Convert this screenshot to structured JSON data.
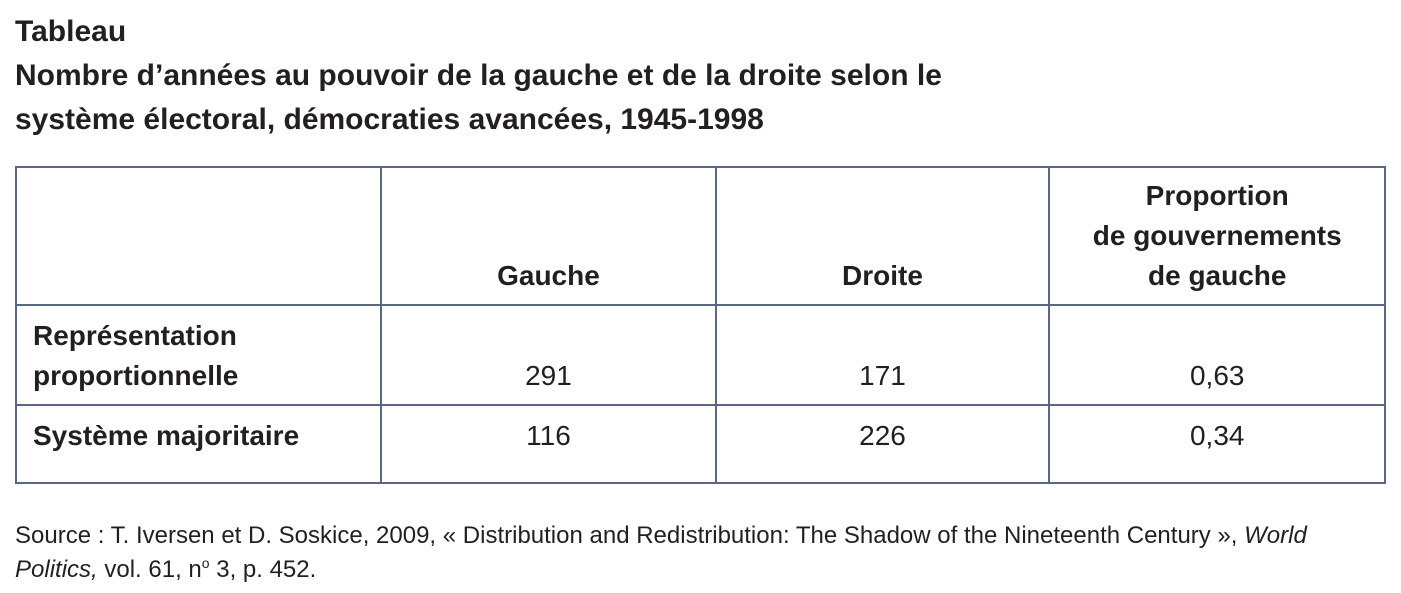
{
  "header": {
    "label": "Tableau",
    "title_lines": [
      "Nombre d’années au pouvoir de la gauche et de la droite selon le",
      "système électoral, démocraties avancées, 1945-1998"
    ]
  },
  "table": {
    "columns": [
      [
        "Gauche"
      ],
      [
        "Droite"
      ],
      [
        "Proportion",
        "de gouvernements",
        "de gauche"
      ]
    ],
    "rows": [
      {
        "label": [
          "Représentation",
          "proportionnelle"
        ],
        "cells": [
          "291",
          "171",
          "0,63"
        ]
      },
      {
        "label": [
          "Système majoritaire"
        ],
        "cells": [
          "116",
          "226",
          "0,34"
        ]
      }
    ]
  },
  "source": {
    "parts": [
      {
        "text": "Source : T. Iversen et D. Soskice, 2009, « Distribution and Redistribution: The Shadow of the Nineteenth Century », ",
        "style": "normal"
      },
      {
        "text": "World Politics,",
        "style": "italic"
      },
      {
        "text": " vol. 61, n",
        "style": "normal"
      },
      {
        "text": "o",
        "style": "superscript"
      },
      {
        "text": " 3, p. 452.",
        "style": "normal"
      }
    ]
  }
}
